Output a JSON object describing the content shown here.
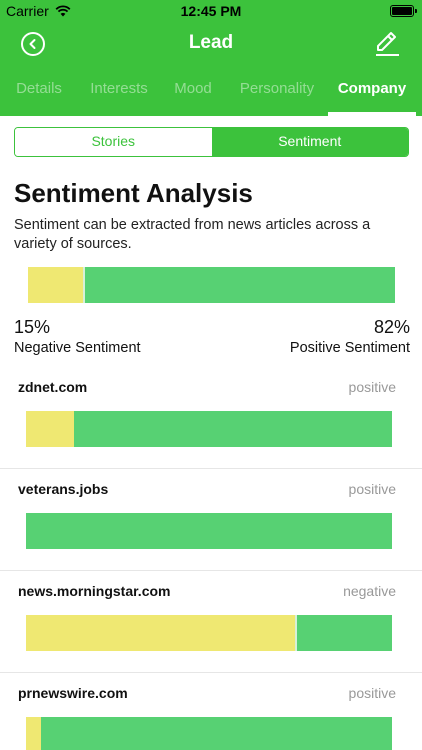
{
  "status_bar": {
    "carrier": "Carrier",
    "time": "12:45 PM"
  },
  "nav": {
    "title": "Lead"
  },
  "tabs": [
    {
      "label": "Details",
      "active": false
    },
    {
      "label": "Interests",
      "active": false
    },
    {
      "label": "Mood",
      "active": false
    },
    {
      "label": "Personality",
      "active": false
    },
    {
      "label": "Company",
      "active": true
    }
  ],
  "segmented": {
    "stories": "Stories",
    "sentiment": "Sentiment",
    "selected": "sentiment"
  },
  "sentiment": {
    "title": "Sentiment Analysis",
    "description": "Sentiment can be extracted from news articles across a variety of sources.",
    "negative_value": 0.15,
    "negative_pct": "15%",
    "negative_label": "Negative Sentiment",
    "positive_pct": "82%",
    "positive_label": "Positive Sentiment"
  },
  "sources": [
    {
      "domain": "zdnet.com",
      "verdict": "positive",
      "negative_fraction": 0.13
    },
    {
      "domain": "veterans.jobs",
      "verdict": "positive",
      "negative_fraction": 0.0
    },
    {
      "domain": "news.morningstar.com",
      "verdict": "negative",
      "negative_fraction": 0.74
    },
    {
      "domain": "prnewswire.com",
      "verdict": "positive",
      "negative_fraction": 0.04
    }
  ],
  "colors": {
    "brand_green": "#3cc23c",
    "positive": "#57d173",
    "negative": "#efe872"
  },
  "icons": {
    "back": "chevron-left-circle-icon",
    "edit": "pencil-icon",
    "wifi": "wifi-icon",
    "battery": "battery-icon"
  }
}
